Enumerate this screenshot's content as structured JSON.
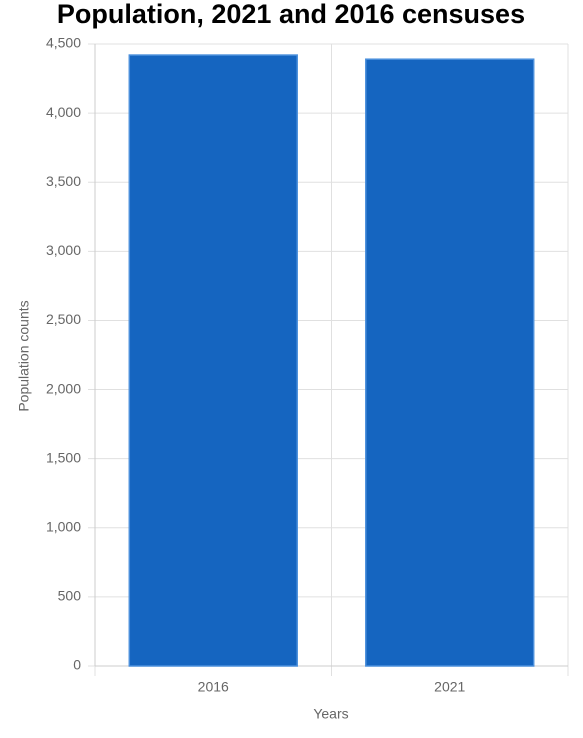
{
  "chart_data": {
    "type": "bar",
    "title": "Population, 2021 and 2016 censuses",
    "x_label": "Years",
    "y_label": "Population counts",
    "categories": [
      "2016",
      "2021"
    ],
    "values": [
      4420,
      4390
    ],
    "color": "#1565c0",
    "ylim": [
      0,
      4500
    ],
    "yticks": [
      0,
      500,
      {
        "value": 1000,
        "label": "1,000"
      },
      {
        "value": 1500,
        "label": "1,500"
      },
      {
        "value": 2000,
        "label": "2,000"
      },
      {
        "value": 2500,
        "label": "2,500"
      },
      {
        "value": 3000,
        "label": "3,000"
      },
      {
        "value": 3500,
        "label": "3,500"
      },
      {
        "value": 4000,
        "label": "4,000"
      },
      {
        "value": 4500,
        "label": "4,500"
      }
    ],
    "grid": true
  }
}
